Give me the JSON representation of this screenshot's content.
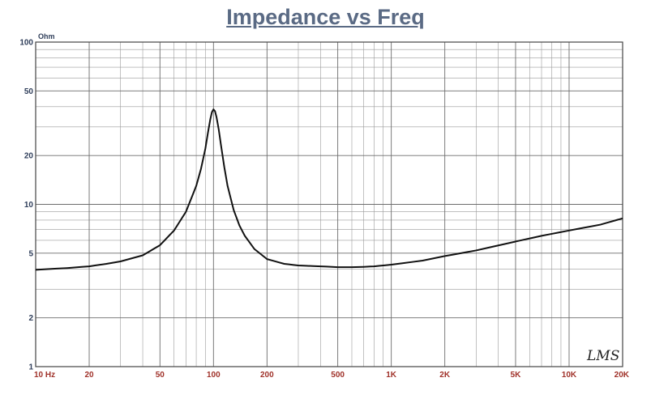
{
  "chart_data": {
    "type": "line",
    "title": "Impedance vs Freq",
    "y_unit_label": "Ohm",
    "x_scale": "log",
    "y_scale": "log",
    "xlim": [
      10,
      20000
    ],
    "ylim": [
      1,
      100
    ],
    "grid": true,
    "x_tick_values": [
      10,
      20,
      50,
      100,
      200,
      500,
      1000,
      2000,
      5000,
      10000,
      20000
    ],
    "x_tick_labels": [
      "10 Hz",
      "20",
      "50",
      "100",
      "200",
      "500",
      "1K",
      "2K",
      "5K",
      "10K",
      "20K"
    ],
    "y_tick_values": [
      100,
      50,
      20,
      10,
      5,
      2,
      1
    ],
    "y_tick_labels": [
      "100",
      "50",
      "20",
      "10",
      "5",
      "2",
      "1"
    ],
    "watermark": "LMS",
    "colors": {
      "curve": "#111111",
      "grid": "#9a9a9a",
      "frame": "#444444",
      "title": "#5a6a84",
      "y_labels": "#2f3e5a",
      "x_labels": "#a0322a"
    },
    "series": [
      {
        "x": [
          10,
          15,
          20,
          25,
          30,
          40,
          50,
          60,
          70,
          80,
          85,
          90,
          93,
          96,
          98,
          100,
          102,
          104,
          107,
          110,
          115,
          120,
          130,
          140,
          150,
          170,
          200,
          250,
          300,
          400,
          500,
          600,
          700,
          800,
          1000,
          1500,
          2000,
          3000,
          5000,
          7000,
          10000,
          15000,
          20000
        ],
        "y": [
          3.95,
          4.05,
          4.15,
          4.3,
          4.45,
          4.85,
          5.6,
          6.9,
          9.0,
          13.0,
          16.5,
          22.0,
          27.5,
          33.5,
          37.0,
          38.5,
          37.5,
          34.5,
          29.0,
          23.5,
          17.0,
          13.0,
          9.2,
          7.4,
          6.4,
          5.3,
          4.6,
          4.3,
          4.2,
          4.15,
          4.1,
          4.1,
          4.12,
          4.15,
          4.25,
          4.5,
          4.8,
          5.2,
          5.9,
          6.4,
          6.9,
          7.5,
          8.2
        ]
      }
    ]
  }
}
